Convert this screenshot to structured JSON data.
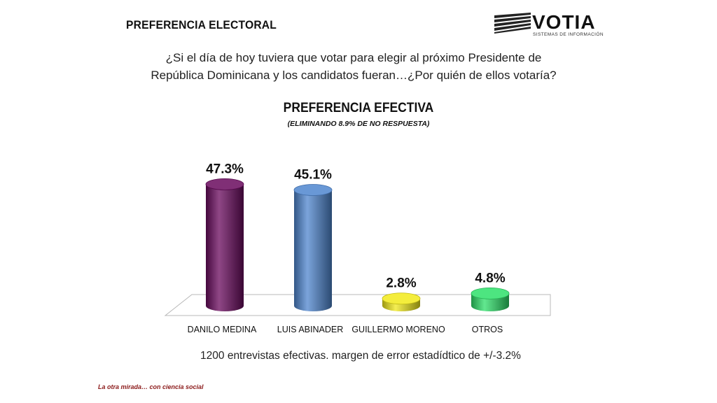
{
  "header": {
    "title": "PREFERENCIA ELECTORAL",
    "logo_text": "VOTIA",
    "logo_subtitle": "SISTEMAS DE INFORMACIÓN"
  },
  "question": "¿Si el día de hoy tuviera que votar para elegir al próximo Presidente de República Dominicana y los candidatos fueran…¿Por quién de ellos votaría?",
  "chart_data": {
    "type": "bar",
    "title": "PREFERENCIA EFECTIVA",
    "subtitle": "(ELIMINANDO 8.9% DE NO RESPUESTA)",
    "categories": [
      "DANILO MEDINA",
      "LUIS ABINADER",
      "GUILLERMO MORENO",
      "OTROS"
    ],
    "values": [
      47.3,
      45.1,
      2.8,
      4.8
    ],
    "value_labels": [
      "47.3%",
      "45.1%",
      "2.8%",
      "4.8%"
    ],
    "colors": [
      "#6a0a5e",
      "#4f86cf",
      "#f2ea1a",
      "#2ee06a"
    ],
    "ylim": [
      0,
      50
    ],
    "grid": false,
    "legend": "none"
  },
  "footer": {
    "note": "1200 entrevistas  efectivas.  margen de error estadídtico de +/-3.2%",
    "tagline": "La otra mirada… con ciencia social"
  }
}
